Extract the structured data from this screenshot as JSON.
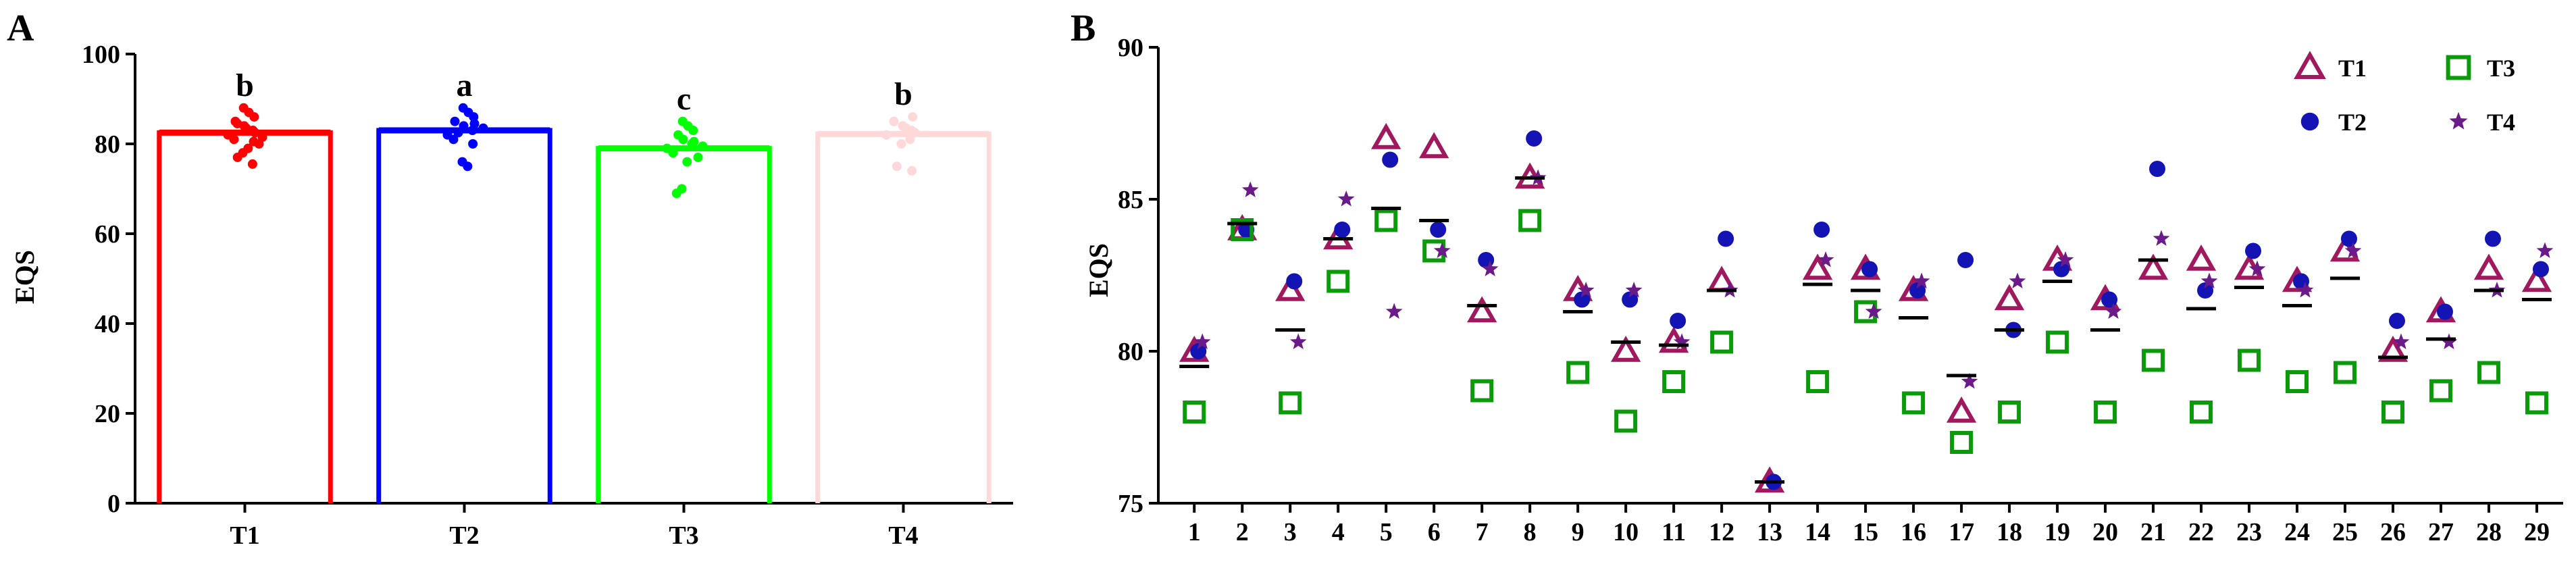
{
  "chart_data": [
    {
      "panel": "A",
      "type": "bar",
      "categories": [
        "T1",
        "T2",
        "T3",
        "T4"
      ],
      "values": [
        82.5,
        83,
        79,
        82.2
      ],
      "significance": [
        "b",
        "a",
        "c",
        "b"
      ],
      "colors": [
        "#ff0000",
        "#0000ff",
        "#00ff00",
        "#ffd9d9"
      ],
      "ylabel": "EQS",
      "ylim": [
        0,
        100
      ],
      "yticks": [
        0,
        20,
        40,
        60,
        80,
        100
      ],
      "points": [
        [
          82,
          83,
          84,
          85,
          86,
          87,
          88,
          81,
          80,
          79,
          78,
          77,
          75.5,
          82.5,
          83.5,
          84.5,
          81.5,
          80.5
        ],
        [
          82,
          83,
          84,
          85,
          86,
          87,
          88,
          81,
          80,
          75,
          76,
          82.5,
          83.5,
          84.5
        ],
        [
          79,
          80,
          81,
          82,
          83,
          84,
          85,
          78,
          77,
          76,
          70,
          69,
          79.5,
          80.5
        ],
        [
          82,
          83,
          84,
          85,
          86,
          81,
          80,
          75,
          74,
          82.5,
          83.5
        ]
      ]
    },
    {
      "panel": "B",
      "type": "scatter",
      "ylabel": "EQS",
      "ylim": [
        75,
        90
      ],
      "yticks": [
        75,
        80,
        85,
        90
      ],
      "x": [
        1,
        2,
        3,
        4,
        5,
        6,
        7,
        8,
        9,
        10,
        11,
        12,
        13,
        14,
        15,
        16,
        17,
        18,
        19,
        20,
        21,
        22,
        23,
        24,
        25,
        26,
        27,
        28,
        29
      ],
      "series": [
        {
          "name": "T1",
          "marker": "triangle",
          "color": "#a0195f",
          "values": [
            80,
            84,
            82,
            83.7,
            87,
            86.7,
            81.3,
            85.7,
            82,
            80,
            80.3,
            82.3,
            75.7,
            82.7,
            82.7,
            82,
            78,
            81.7,
            83,
            81.7,
            82.7,
            83,
            82.7,
            82.3,
            83.3,
            80,
            81.3,
            82.7,
            82.3
          ]
        },
        {
          "name": "T2",
          "marker": "circle",
          "color": "#1414b4",
          "values": [
            80,
            84,
            82.3,
            84,
            86.3,
            84,
            83,
            87,
            81.7,
            81.7,
            81,
            83.7,
            75.7,
            84,
            82.7,
            82,
            83,
            80.7,
            82.7,
            81.7,
            86,
            82,
            83.3,
            82.3,
            83.7,
            81,
            81.3,
            83.7,
            82.7
          ]
        },
        {
          "name": "T3",
          "marker": "square",
          "color": "#0a9a0a",
          "values": [
            78,
            84,
            78.3,
            82.3,
            84.3,
            83.3,
            78.7,
            84.3,
            79.3,
            77.7,
            79,
            80.3,
            null,
            79,
            81.3,
            78.3,
            77,
            78,
            80.3,
            78,
            79.7,
            78,
            79.7,
            79,
            79.3,
            78,
            78.7,
            79.3,
            78.3
          ]
        },
        {
          "name": "T4",
          "marker": "star",
          "color": "#6b1a8a",
          "values": [
            80.3,
            85.3,
            80.3,
            85,
            81.3,
            83.3,
            82.7,
            85.7,
            82,
            82,
            80.3,
            82,
            null,
            83,
            81.3,
            82.3,
            79,
            82.3,
            83,
            81.3,
            83.7,
            82.3,
            82.7,
            82,
            83.3,
            80.3,
            80.3,
            82,
            83.3
          ]
        }
      ],
      "means": [
        79.5,
        84.2,
        80.7,
        83.7,
        84.7,
        84.3,
        81.5,
        85.7,
        81.3,
        80.3,
        80.2,
        82,
        75.7,
        82.2,
        82,
        81.1,
        79.2,
        80.7,
        82.3,
        80.7,
        83,
        81.4,
        82.1,
        81.5,
        82.4,
        79.8,
        80.4,
        82,
        81.7
      ],
      "legend": [
        "T1",
        "T3",
        "T2",
        "T4"
      ]
    }
  ]
}
